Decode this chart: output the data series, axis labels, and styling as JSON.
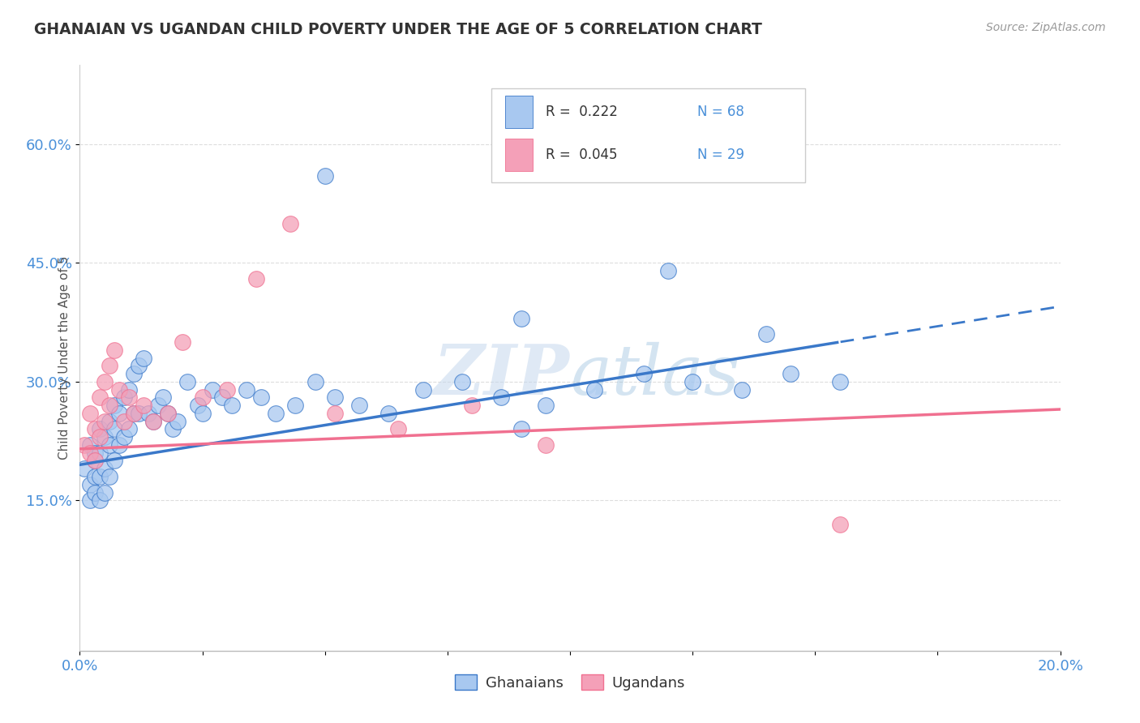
{
  "title": "GHANAIAN VS UGANDAN CHILD POVERTY UNDER THE AGE OF 5 CORRELATION CHART",
  "source_text": "Source: ZipAtlas.com",
  "ylabel": "Child Poverty Under the Age of 5",
  "xlim": [
    0.0,
    0.2
  ],
  "ylim": [
    -0.04,
    0.7
  ],
  "xticks": [
    0.0,
    0.025,
    0.05,
    0.075,
    0.1,
    0.125,
    0.15,
    0.175,
    0.2
  ],
  "xtick_labels": [
    "0.0%",
    "",
    "",
    "",
    "",
    "",
    "",
    "",
    "20.0%"
  ],
  "ytick_labels": [
    "15.0%",
    "30.0%",
    "45.0%",
    "60.0%"
  ],
  "ytick_vals": [
    0.15,
    0.3,
    0.45,
    0.6
  ],
  "watermark": "ZIPatlas",
  "legend_r1": "R =  0.222",
  "legend_n1": "N = 68",
  "legend_r2": "R =  0.045",
  "legend_n2": "N = 29",
  "color_blue": "#A8C8F0",
  "color_pink": "#F4A0B8",
  "color_blue_line": "#3A78C9",
  "color_pink_line": "#F07090",
  "background_color": "#FFFFFF",
  "grid_color": "#DDDDDD",
  "gh_x": [
    0.001,
    0.002,
    0.002,
    0.002,
    0.003,
    0.003,
    0.003,
    0.003,
    0.004,
    0.004,
    0.004,
    0.004,
    0.005,
    0.005,
    0.005,
    0.006,
    0.006,
    0.006,
    0.007,
    0.007,
    0.007,
    0.008,
    0.008,
    0.009,
    0.009,
    0.01,
    0.01,
    0.011,
    0.011,
    0.012,
    0.012,
    0.013,
    0.014,
    0.015,
    0.016,
    0.017,
    0.018,
    0.019,
    0.02,
    0.022,
    0.024,
    0.025,
    0.027,
    0.029,
    0.031,
    0.034,
    0.037,
    0.04,
    0.044,
    0.048,
    0.052,
    0.057,
    0.063,
    0.07,
    0.078,
    0.086,
    0.095,
    0.105,
    0.115,
    0.125,
    0.135,
    0.145,
    0.155,
    0.05,
    0.09,
    0.12,
    0.14,
    0.09
  ],
  "gh_y": [
    0.19,
    0.22,
    0.17,
    0.15,
    0.21,
    0.18,
    0.16,
    0.2,
    0.24,
    0.21,
    0.18,
    0.15,
    0.23,
    0.19,
    0.16,
    0.25,
    0.22,
    0.18,
    0.27,
    0.24,
    0.2,
    0.26,
    0.22,
    0.28,
    0.23,
    0.29,
    0.24,
    0.31,
    0.26,
    0.32,
    0.26,
    0.33,
    0.26,
    0.25,
    0.27,
    0.28,
    0.26,
    0.24,
    0.25,
    0.3,
    0.27,
    0.26,
    0.29,
    0.28,
    0.27,
    0.29,
    0.28,
    0.26,
    0.27,
    0.3,
    0.28,
    0.27,
    0.26,
    0.29,
    0.3,
    0.28,
    0.27,
    0.29,
    0.31,
    0.3,
    0.29,
    0.31,
    0.3,
    0.56,
    0.38,
    0.44,
    0.36,
    0.24
  ],
  "ug_x": [
    0.001,
    0.002,
    0.002,
    0.003,
    0.003,
    0.004,
    0.004,
    0.005,
    0.005,
    0.006,
    0.006,
    0.007,
    0.008,
    0.009,
    0.01,
    0.011,
    0.013,
    0.015,
    0.018,
    0.021,
    0.025,
    0.03,
    0.036,
    0.043,
    0.052,
    0.065,
    0.08,
    0.155,
    0.095
  ],
  "ug_y": [
    0.22,
    0.26,
    0.21,
    0.24,
    0.2,
    0.28,
    0.23,
    0.3,
    0.25,
    0.32,
    0.27,
    0.34,
    0.29,
    0.25,
    0.28,
    0.26,
    0.27,
    0.25,
    0.26,
    0.35,
    0.28,
    0.29,
    0.43,
    0.5,
    0.26,
    0.24,
    0.27,
    0.12,
    0.22
  ],
  "trend_gh_x0": 0.0,
  "trend_gh_y0": 0.195,
  "trend_gh_x1": 0.2,
  "trend_gh_y1": 0.395,
  "trend_gh_solid_end": 0.155,
  "trend_ug_x0": 0.0,
  "trend_ug_y0": 0.215,
  "trend_ug_x1": 0.2,
  "trend_ug_y1": 0.265
}
